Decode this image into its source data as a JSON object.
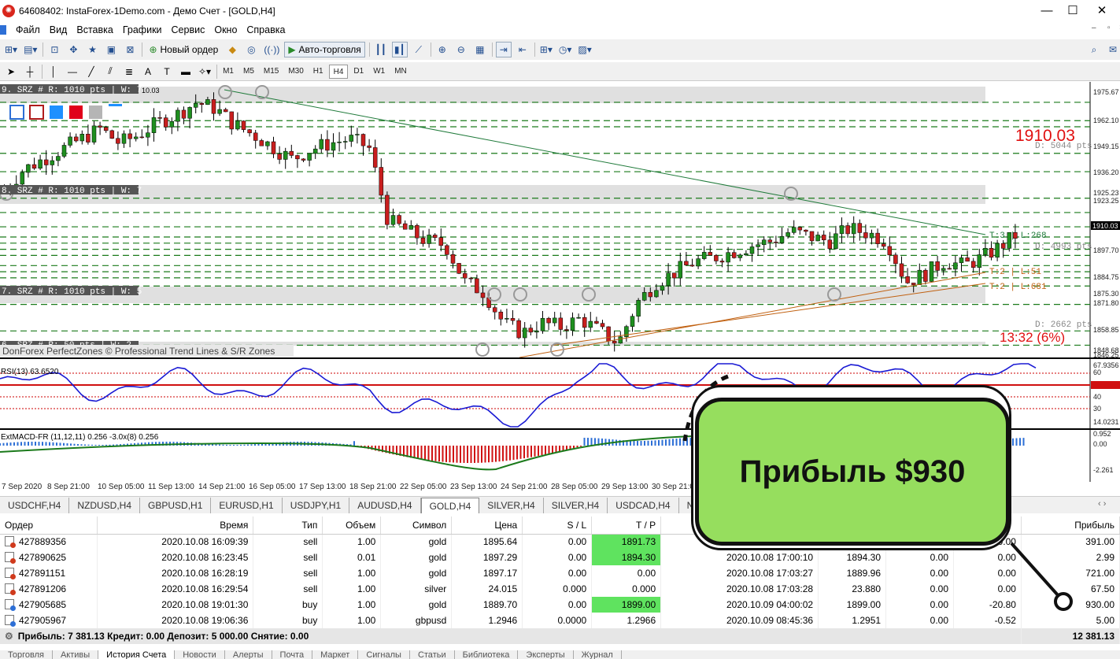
{
  "window": {
    "title": "64608402: InstaForex-1Demo.com - Демо Счет - [GOLD,H4]",
    "minimize": "—",
    "maximize": "☐",
    "close": "✕"
  },
  "menu": [
    "Файл",
    "Вид",
    "Вставка",
    "Графики",
    "Сервис",
    "Окно",
    "Справка"
  ],
  "toolbar": {
    "new_order": "Новый ордер",
    "autotrading": "Авто-торговля",
    "text_tool": "A",
    "timeframes": [
      "M1",
      "M5",
      "M15",
      "M30",
      "H1",
      "H4",
      "D1",
      "W1",
      "MN"
    ],
    "active_timeframe": "H4"
  },
  "chart": {
    "zones": [
      {
        "label": "9. SRZ # R: 1010 pts | W: 7",
        "extra": "10.03"
      },
      {
        "label": "8. SRZ # R: 1010 pts | W: 7",
        "extra": ""
      },
      {
        "label": "7. SRZ # R: 1010 pts | W: 5",
        "extra": ""
      },
      {
        "label": "6. SRZ # R: 50 pts | W: 2",
        "extra": ""
      }
    ],
    "watermark": "DonForex PerfectZones © Professional Trend Lines & S/R Zones",
    "price_big": "1910.03",
    "dist_top": "D: 5044 pts",
    "dist_mid": "D: 4993 pts",
    "dist_low": "D: 2662 pts",
    "timer": "13:32 (6%)",
    "trend_t3": "T:3 | L:268",
    "trend_t2a": "T:2 | L:51",
    "trend_t2b": "T:2 | L:681",
    "price_scale": [
      "1975.67",
      "1962.10",
      "1949.15",
      "1936.20",
      "1925.23",
      "1923.25",
      "1910.03",
      "1897.70",
      "1884.75",
      "1875.30",
      "1871.80",
      "1858.85",
      "1848.68",
      "1846.25"
    ],
    "current_price": "1910.03",
    "rsi_label": "RSI(13) 63.6520",
    "rsi_scale": [
      "67.9356",
      "60",
      "50.0000",
      "40",
      "30",
      "14.0231"
    ],
    "macd_label": "ExtMACD-FR (11,12,11) 0.256 -3.0x(8) 0.256",
    "macd_scale": [
      "0.952",
      "0.00",
      "-2.261"
    ],
    "dates": [
      "7 Sep 2020",
      "8 Sep 21:00",
      "10 Sep 05:00",
      "11 Sep 13:00",
      "14 Sep 21:00",
      "16 Sep 05:00",
      "17 Sep 13:00",
      "18 Sep 21:00",
      "22 Sep 05:00",
      "23 Sep 13:00",
      "24 Sep 21:00",
      "28 Sep 05:00",
      "29 Sep 13:00",
      "30 Sep 21:00"
    ],
    "colors": {
      "bull": "#1f8f1f",
      "bear": "#c81e1e",
      "zone": "#e0e0e0",
      "level": "#1a7a1a",
      "rsi": "#1a1ad4",
      "signal_red": "#d01010"
    }
  },
  "symbol_tabs": [
    "USDCHF,H4",
    "NZDUSD,H4",
    "GBPUSD,H1",
    "EURUSD,H1",
    "USDJPY,H1",
    "AUDUSD,H4",
    "GOLD,H4",
    "SILVER,H4",
    "SILVER,H4",
    "USDCAD,H4",
    "NZDJPY,H"
  ],
  "active_symbol_tab": "GOLD,H4",
  "table": {
    "headers": [
      "Ордер",
      "Время",
      "Тип",
      "Объем",
      "Символ",
      "Цена",
      "S / L",
      "T / P",
      "",
      "",
      "",
      "",
      "Прибыль"
    ],
    "header_hidden_tail": "ро",
    "rows": [
      {
        "order": "427889356",
        "time": "2020.10.08 16:09:39",
        "type": "sell",
        "volume": "1.00",
        "symbol": "gold",
        "price": "1895.64",
        "sl": "0.00",
        "tp": "1891.73",
        "close_time": "",
        "close_price": "",
        "commission": "",
        "swap": "0.00",
        "profit": "391.00",
        "tp_hit": true
      },
      {
        "order": "427890625",
        "time": "2020.10.08 16:23:45",
        "type": "sell",
        "volume": "0.01",
        "symbol": "gold",
        "price": "1897.29",
        "sl": "0.00",
        "tp": "1894.30",
        "close_time": "2020.10.08 17:00:10",
        "close_price": "1894.30",
        "commission": "0.00",
        "swap": "0.00",
        "profit": "2.99",
        "tp_hit": true
      },
      {
        "order": "427891151",
        "time": "2020.10.08 16:28:19",
        "type": "sell",
        "volume": "1.00",
        "symbol": "gold",
        "price": "1897.17",
        "sl": "0.00",
        "tp": "0.00",
        "close_time": "2020.10.08 17:03:27",
        "close_price": "1889.96",
        "commission": "0.00",
        "swap": "0.00",
        "profit": "721.00",
        "tp_hit": false
      },
      {
        "order": "427891206",
        "time": "2020.10.08 16:29:54",
        "type": "sell",
        "volume": "1.00",
        "symbol": "silver",
        "price": "24.015",
        "sl": "0.000",
        "tp": "0.000",
        "close_time": "2020.10.08 17:03:28",
        "close_price": "23.880",
        "commission": "0.00",
        "swap": "0.00",
        "profit": "67.50",
        "tp_hit": false
      },
      {
        "order": "427905685",
        "time": "2020.10.08 19:01:30",
        "type": "buy",
        "volume": "1.00",
        "symbol": "gold",
        "price": "1889.70",
        "sl": "0.00",
        "tp": "1899.00",
        "close_time": "2020.10.09 04:00:02",
        "close_price": "1899.00",
        "commission": "0.00",
        "swap": "-20.80",
        "profit": "930.00",
        "tp_hit": true
      },
      {
        "order": "427905967",
        "time": "2020.10.08 19:06:36",
        "type": "buy",
        "volume": "1.00",
        "symbol": "gbpusd",
        "price": "1.2946",
        "sl": "0.0000",
        "tp": "1.2966",
        "close_time": "2020.10.09 08:45:36",
        "close_price": "1.2951",
        "commission": "0.00",
        "swap": "-0.52",
        "profit": "5.00",
        "tp_hit": false
      }
    ],
    "summary": "Прибыль: 7 381.13  Кредит: 0.00  Депозит: 5 000.00  Снятие: 0.00",
    "summary_total": "12 381.13"
  },
  "bottom_tabs": [
    "Торговля",
    "Активы",
    "История Счета",
    "Новости",
    "Алерты",
    "Почта",
    "Маркет",
    "Сигналы",
    "Статьи",
    "Библиотека",
    "Эксперты",
    "Журнал"
  ],
  "active_bottom_tab": "История Счета",
  "callout": {
    "text": "Прибыль $930",
    "color": "#96de5e"
  }
}
